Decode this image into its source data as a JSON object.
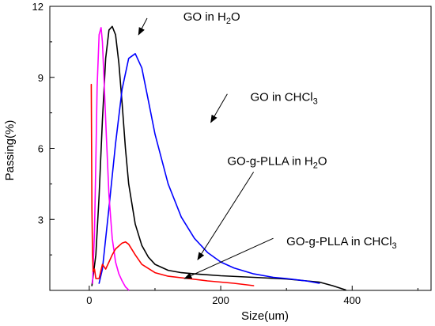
{
  "chart_data": {
    "type": "line",
    "xlabel": "Size(um)",
    "ylabel": "Passing(%)",
    "xlim": [
      -60,
      520
    ],
    "ylim": [
      0,
      12
    ],
    "xticks": [
      0,
      200,
      400
    ],
    "yticks": [
      3,
      6,
      9,
      12
    ],
    "grid": false,
    "series": [
      {
        "color": "#000000",
        "x": [
          4,
          10,
          15,
          20,
          25,
          30,
          35,
          40,
          45,
          50,
          55,
          60,
          70,
          80,
          90,
          100,
          120,
          140,
          160,
          200,
          250,
          300,
          350,
          370,
          390
        ],
        "y": [
          0.2,
          1.5,
          4.0,
          7.2,
          9.8,
          11.0,
          11.15,
          10.8,
          9.6,
          7.9,
          6.0,
          4.5,
          2.8,
          1.9,
          1.4,
          1.1,
          0.85,
          0.75,
          0.7,
          0.62,
          0.55,
          0.48,
          0.35,
          0.2,
          0.02
        ]
      },
      {
        "color": "#0000ff",
        "x": [
          15,
          20,
          30,
          40,
          50,
          60,
          70,
          80,
          90,
          100,
          120,
          140,
          160,
          180,
          200,
          220,
          250,
          280,
          300,
          330,
          350
        ],
        "y": [
          0.3,
          0.9,
          3.5,
          6.2,
          8.5,
          9.8,
          10.0,
          9.4,
          8.0,
          6.6,
          4.5,
          3.1,
          2.2,
          1.6,
          1.2,
          0.95,
          0.7,
          0.55,
          0.5,
          0.4,
          0.3
        ]
      },
      {
        "color": "#ff00ff",
        "x": [
          5,
          8,
          10,
          12,
          15,
          18,
          20,
          23,
          26,
          30,
          35,
          40,
          45,
          50,
          55,
          60
        ],
        "y": [
          0.3,
          2.5,
          5.5,
          8.6,
          10.8,
          11.1,
          10.5,
          8.5,
          6.5,
          4.0,
          2.2,
          1.2,
          0.7,
          0.4,
          0.15,
          0.02
        ]
      },
      {
        "color": "#ff0000",
        "x": [
          3,
          4,
          5,
          6,
          8,
          10,
          15,
          20,
          25,
          30,
          35,
          40,
          50,
          55,
          60,
          70,
          80,
          100,
          120,
          150,
          180,
          200,
          220,
          250
        ],
        "y": [
          8.7,
          3.5,
          1.5,
          0.8,
          0.9,
          0.5,
          0.5,
          1.1,
          0.9,
          1.2,
          1.5,
          1.75,
          2.0,
          2.05,
          1.95,
          1.5,
          1.1,
          0.75,
          0.6,
          0.5,
          0.4,
          0.35,
          0.3,
          0.2
        ]
      }
    ],
    "annotations": [
      {
        "text": "GO in H",
        "sub": "2",
        "suffix": "O",
        "x": 143,
        "y": 11.4,
        "arrow_from": [
          88,
          11.5
        ],
        "arrow_to": [
          75,
          10.8
        ]
      },
      {
        "text": "GO in CHCl",
        "sub": "3",
        "suffix": "",
        "x": 245,
        "y": 8.0,
        "arrow_from": [
          210,
          8.3
        ],
        "arrow_to": [
          185,
          7.1
        ]
      },
      {
        "text": "GO-g-PLLA in H",
        "sub": "2",
        "suffix": "O",
        "x": 210,
        "y": 5.3,
        "arrow_from": [
          250,
          5.0
        ],
        "arrow_to": [
          165,
          1.3
        ]
      },
      {
        "text": "GO-g-PLLA in CHCl",
        "sub": "3",
        "suffix": "",
        "x": 300,
        "y": 1.9,
        "arrow_from": [
          280,
          2.2
        ],
        "arrow_to": [
          145,
          0.5
        ]
      }
    ]
  }
}
